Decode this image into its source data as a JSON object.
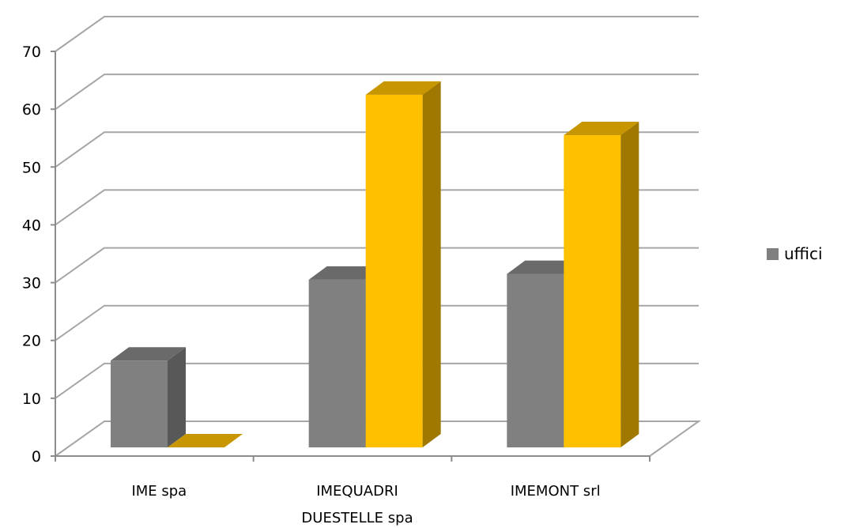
{
  "chart_data": {
    "type": "bar",
    "style": "3d-clustered-column",
    "categories": [
      "IME spa",
      "IMEQUADRI DUESTELLE spa",
      "IMEMONT srl"
    ],
    "category_label_lines": [
      [
        "IME spa"
      ],
      [
        "IMEQUADRI",
        "DUESTELLE spa"
      ],
      [
        "IMEMONT srl"
      ]
    ],
    "series": [
      {
        "name": "uffici",
        "color": "#808080",
        "side_color": "#585858",
        "top_color": "#6a6a6a",
        "values": [
          15,
          29,
          30
        ]
      },
      {
        "name": "",
        "color": "#ffc000",
        "side_color": "#a07800",
        "top_color": "#c89600",
        "values": [
          0,
          61,
          54
        ]
      }
    ],
    "ylim": [
      0,
      70
    ],
    "yticks": [
      0,
      10,
      20,
      30,
      40,
      50,
      60,
      70
    ],
    "grid": true,
    "legend": {
      "position": "right",
      "entries": [
        "uffici"
      ]
    },
    "title": "",
    "xlabel": "",
    "ylabel": ""
  }
}
